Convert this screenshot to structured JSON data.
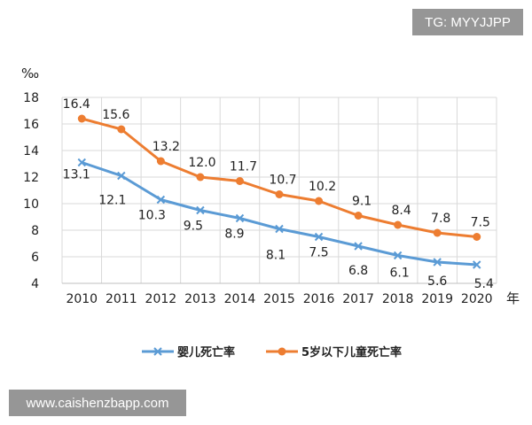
{
  "watermarks": {
    "top_right": "TG: MYYJJPP",
    "bottom_left": "www.caishenzbapp.com"
  },
  "chart_data": {
    "type": "line",
    "x": [
      "2010",
      "2011",
      "2012",
      "2013",
      "2014",
      "2015",
      "2016",
      "2017",
      "2018",
      "2019",
      "2020"
    ],
    "ylabel": "‰",
    "xlabel": "年",
    "ylim": [
      4,
      18
    ],
    "yticks": [
      4,
      6,
      8,
      10,
      12,
      14,
      16,
      18
    ],
    "grid": true,
    "legend": "bottom",
    "series": [
      {
        "name": "婴儿死亡率",
        "color": "#5b9bd5",
        "marker": "x",
        "values": [
          13.1,
          12.1,
          10.3,
          9.5,
          8.9,
          8.1,
          7.5,
          6.8,
          6.1,
          5.6,
          5.4
        ],
        "labels": [
          "13.1",
          "12.1",
          "10.3",
          "9.5",
          "8.9",
          "8.1",
          "7.5",
          "6.8",
          "6.1",
          "5.6",
          "5.4"
        ]
      },
      {
        "name": "5岁以下儿童死亡率",
        "color": "#ed7d31",
        "marker": "circle",
        "values": [
          16.4,
          15.6,
          13.2,
          12.0,
          11.7,
          10.7,
          10.2,
          9.1,
          8.4,
          7.8,
          7.5
        ],
        "labels": [
          "16.4",
          "15.6",
          "13.2",
          "12.0",
          "11.7",
          "10.7",
          "10.2",
          "9.1",
          "8.4",
          "7.8",
          "7.5"
        ]
      }
    ]
  }
}
